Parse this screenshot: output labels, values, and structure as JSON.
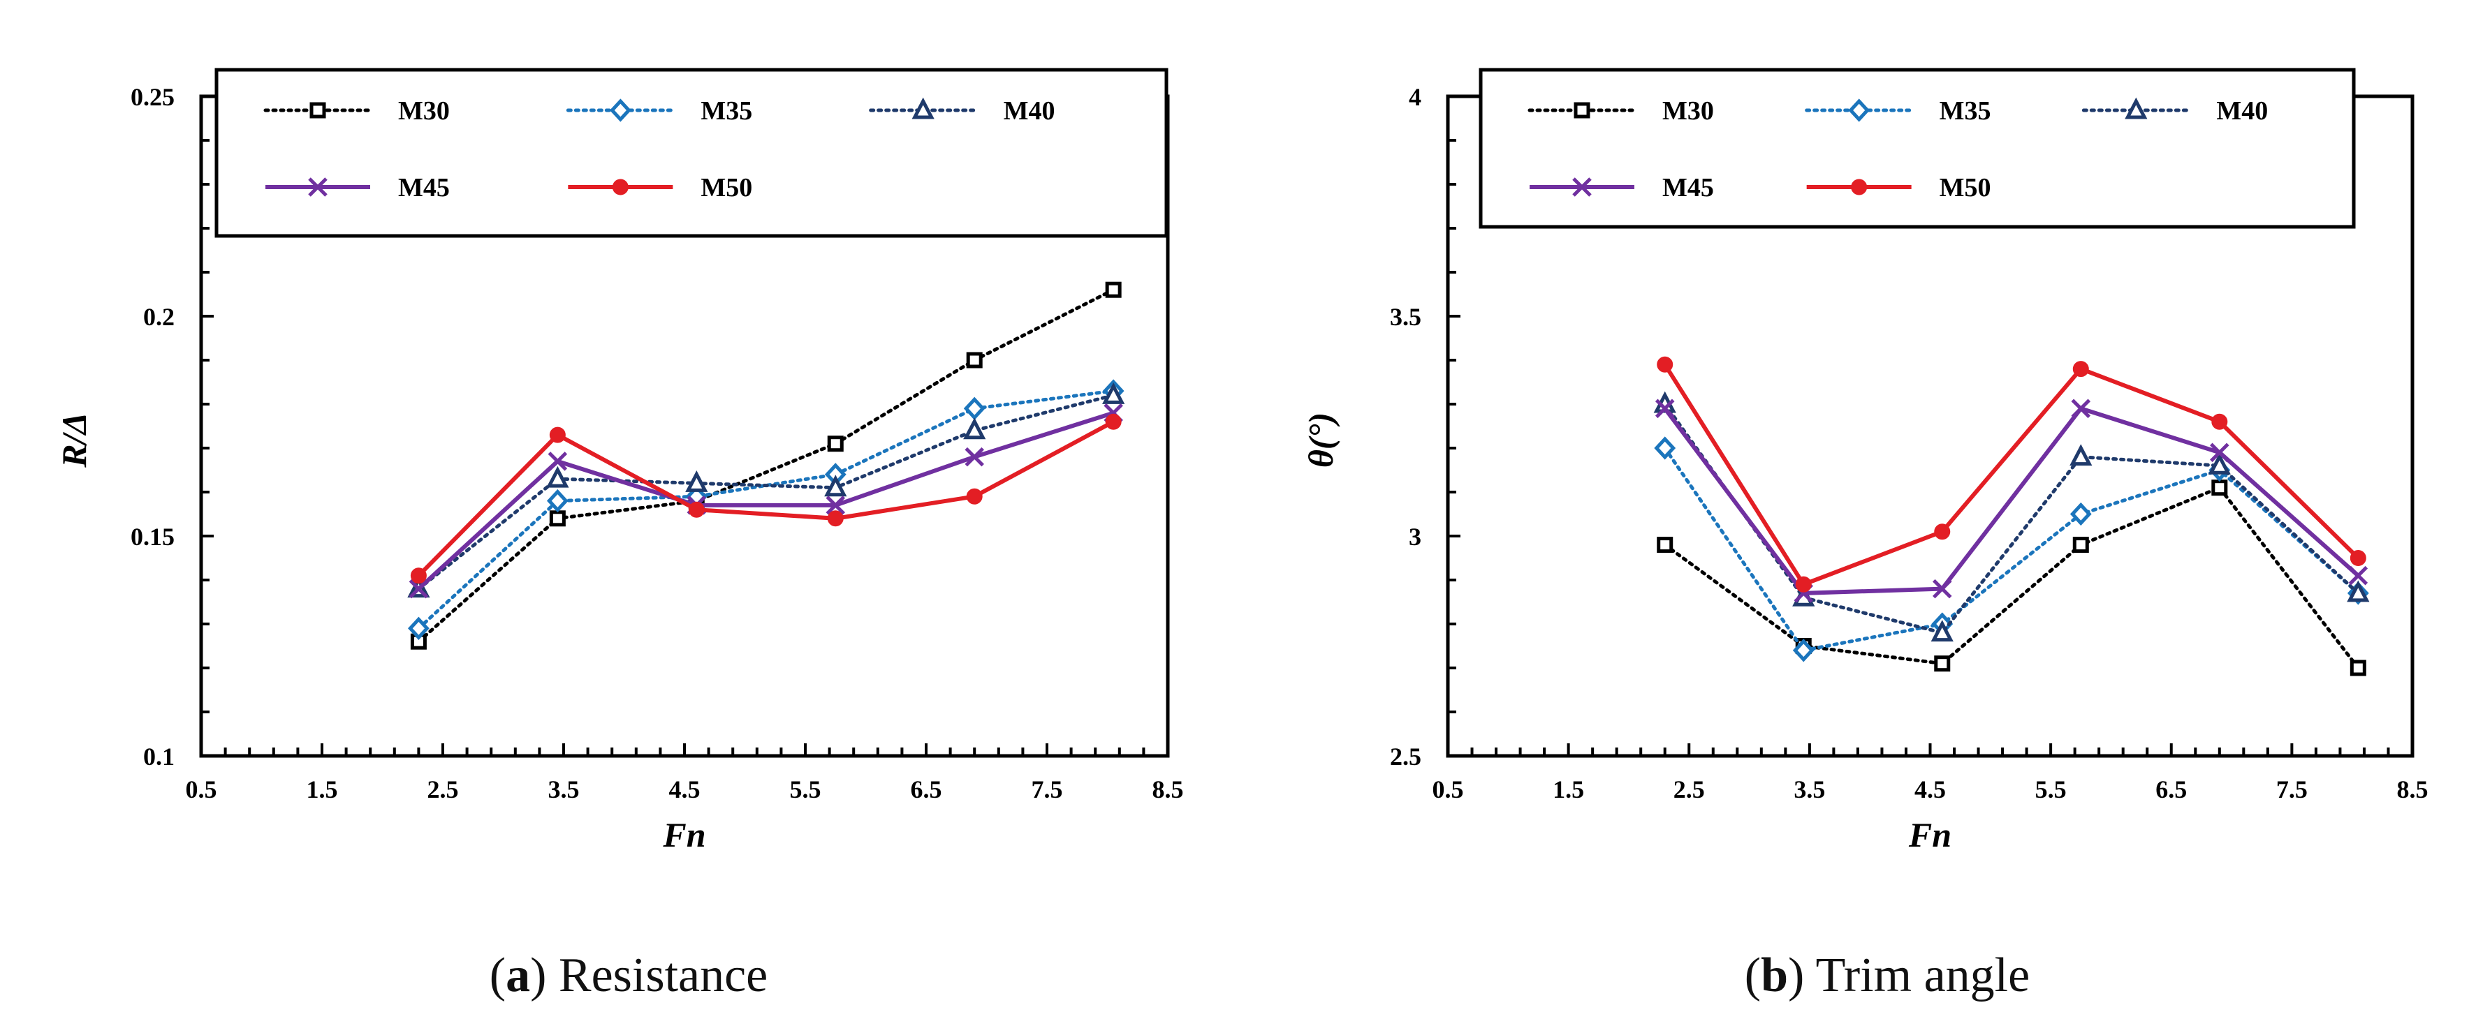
{
  "chart_data": [
    {
      "type": "line",
      "panel_label": "a",
      "caption": "Resistance",
      "xlabel": "Fn",
      "ylabel": "R/Δ",
      "xlim": [
        0.5,
        8.5
      ],
      "ylim": [
        0.1,
        0.25
      ],
      "xticks": [
        "0.5",
        "1.5",
        "2.5",
        "3.5",
        "4.5",
        "5.5",
        "6.5",
        "7.5",
        "8.5"
      ],
      "yticks": [
        "0.1",
        "0.15",
        "0.2",
        "0.25"
      ],
      "x": [
        2.3,
        3.45,
        4.6,
        5.75,
        6.9,
        8.05
      ],
      "series": [
        {
          "name": "M30",
          "values": [
            0.126,
            0.154,
            0.158,
            0.171,
            0.19,
            0.206
          ],
          "color": "#000000",
          "style": "dotted",
          "marker": "square"
        },
        {
          "name": "M35",
          "values": [
            0.129,
            0.158,
            0.159,
            0.164,
            0.179,
            0.183
          ],
          "color": "#1b75bc",
          "style": "dotted",
          "marker": "diamond"
        },
        {
          "name": "M40",
          "values": [
            0.138,
            0.163,
            0.162,
            0.161,
            0.174,
            0.182
          ],
          "color": "#1f3a6b",
          "style": "dotted",
          "marker": "triangle"
        },
        {
          "name": "M45",
          "values": [
            0.138,
            0.167,
            0.157,
            0.157,
            0.168,
            0.178
          ],
          "color": "#7030a0",
          "style": "solid",
          "marker": "x"
        },
        {
          "name": "M50",
          "values": [
            0.141,
            0.173,
            0.156,
            0.154,
            0.159,
            0.176
          ],
          "color": "#e31e24",
          "style": "solid",
          "marker": "circle"
        }
      ]
    },
    {
      "type": "line",
      "panel_label": "b",
      "caption": "Trim angle",
      "xlabel": "Fn",
      "ylabel": "θ(°)",
      "xlim": [
        0.5,
        8.5
      ],
      "ylim": [
        2.5,
        4
      ],
      "xticks": [
        "0.5",
        "1.5",
        "2.5",
        "3.5",
        "4.5",
        "5.5",
        "6.5",
        "7.5",
        "8.5"
      ],
      "yticks": [
        "2.5",
        "3",
        "3.5",
        "4"
      ],
      "x": [
        2.3,
        3.45,
        4.6,
        5.75,
        6.9,
        8.05
      ],
      "series": [
        {
          "name": "M30",
          "values": [
            2.98,
            2.75,
            2.71,
            2.98,
            3.11,
            2.7
          ],
          "color": "#000000",
          "style": "dotted",
          "marker": "square"
        },
        {
          "name": "M35",
          "values": [
            3.2,
            2.74,
            2.8,
            3.05,
            3.15,
            2.87
          ],
          "color": "#1b75bc",
          "style": "dotted",
          "marker": "diamond"
        },
        {
          "name": "M40",
          "values": [
            3.3,
            2.86,
            2.78,
            3.18,
            3.16,
            2.87
          ],
          "color": "#1f3a6b",
          "style": "dotted",
          "marker": "triangle"
        },
        {
          "name": "M45",
          "values": [
            3.29,
            2.87,
            2.88,
            3.29,
            3.19,
            2.91
          ],
          "color": "#7030a0",
          "style": "solid",
          "marker": "x"
        },
        {
          "name": "M50",
          "values": [
            3.39,
            2.89,
            3.01,
            3.38,
            3.26,
            2.95
          ],
          "color": "#e31e24",
          "style": "solid",
          "marker": "circle"
        }
      ]
    }
  ]
}
